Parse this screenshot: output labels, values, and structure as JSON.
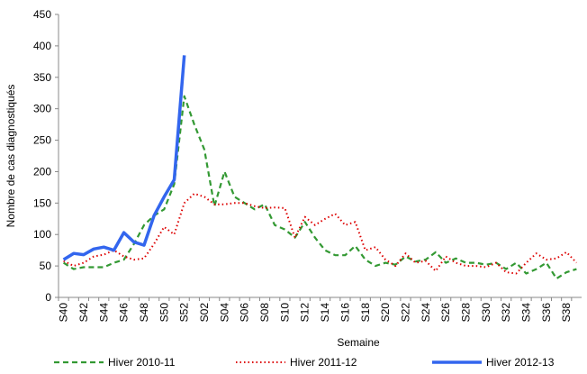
{
  "chart_data": {
    "type": "line",
    "x_label": "Semaine",
    "y_label": "Nombre de cas diagnostiqués",
    "categories": [
      "S40",
      null,
      "S42",
      null,
      "S44",
      null,
      "S46",
      null,
      "S48",
      null,
      "S50",
      null,
      "S52",
      null,
      "S02",
      null,
      "S04",
      null,
      "S06",
      null,
      "S08",
      null,
      "S10",
      null,
      "S12",
      null,
      "S14",
      null,
      "S16",
      null,
      "S18",
      null,
      "S20",
      null,
      "S22",
      null,
      "S24",
      null,
      "S26",
      null,
      "S28",
      null,
      "S30",
      null,
      "S32",
      null,
      "S34",
      null,
      "S36",
      null,
      "S38",
      null
    ],
    "series": [
      {
        "name": "Hiver 2010-11",
        "color": "#339933",
        "dash": "6,4",
        "width": 2.2,
        "values": [
          55,
          45,
          48,
          48,
          48,
          55,
          60,
          85,
          115,
          130,
          140,
          180,
          320,
          275,
          235,
          145,
          200,
          160,
          150,
          140,
          148,
          115,
          108,
          95,
          120,
          95,
          75,
          67,
          67,
          82,
          60,
          50,
          55,
          52,
          65,
          57,
          60,
          72,
          55,
          62,
          55,
          55,
          52,
          55,
          45,
          55,
          38,
          45,
          55,
          30,
          40,
          45
        ]
      },
      {
        "name": "Hiver 2011-12",
        "color": "#dd0000",
        "dash": "1.5,3",
        "width": 2,
        "values": [
          58,
          50,
          55,
          65,
          68,
          75,
          65,
          60,
          62,
          85,
          112,
          100,
          150,
          165,
          160,
          148,
          148,
          150,
          150,
          145,
          142,
          143,
          142,
          95,
          128,
          115,
          125,
          133,
          115,
          120,
          75,
          80,
          60,
          50,
          70,
          55,
          58,
          42,
          65,
          55,
          50,
          50,
          48,
          55,
          40,
          38,
          55,
          70,
          60,
          62,
          72,
          55
        ]
      },
      {
        "name": "Hiver 2012-13",
        "color": "#3366ee",
        "dash": "none",
        "width": 3.5,
        "values": [
          60,
          70,
          68,
          77,
          80,
          75,
          103,
          88,
          83,
          130,
          160,
          187,
          385,
          null,
          null,
          null,
          null,
          null,
          null,
          null,
          null,
          null,
          null,
          null,
          null,
          null,
          null,
          null,
          null,
          null,
          null,
          null,
          null,
          null,
          null,
          null,
          null,
          null,
          null,
          null,
          null,
          null,
          null,
          null,
          null,
          null,
          null,
          null,
          null,
          null,
          null,
          null
        ]
      }
    ],
    "ylim": [
      0,
      450
    ],
    "yticks": [
      0,
      50,
      100,
      150,
      200,
      250,
      300,
      350,
      400,
      450
    ],
    "grid": false
  }
}
